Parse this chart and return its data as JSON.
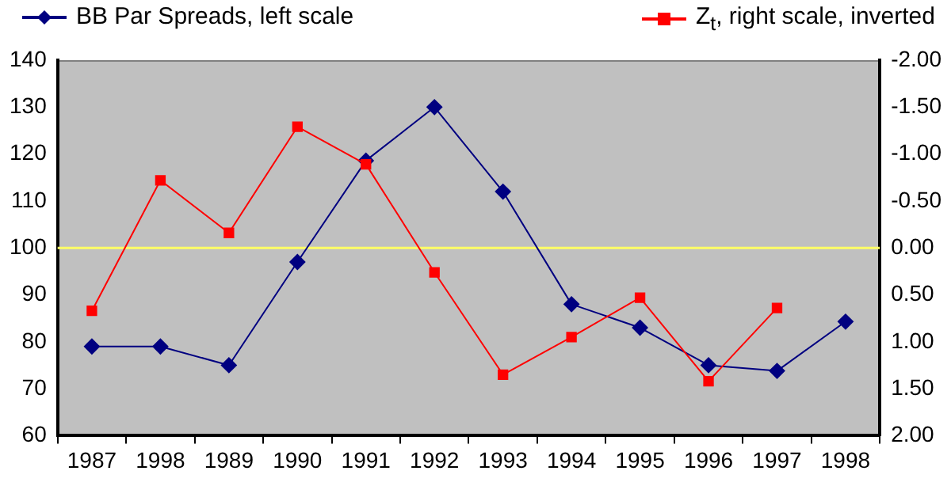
{
  "chart_data": {
    "type": "line",
    "categories": [
      "1987",
      "1998",
      "1989",
      "1990",
      "1991",
      "1992",
      "1993",
      "1994",
      "1995",
      "1996",
      "1997",
      "1998"
    ],
    "series": [
      {
        "name": "BB Par Spreads, left scale",
        "color": "#000080",
        "marker": "diamond",
        "values": [
          79,
          79,
          75,
          97,
          118.6,
          130,
          112,
          88,
          83,
          75,
          73.8,
          84.3
        ]
      },
      {
        "name": "Z$_{t}$, right scale, inverted",
        "color": "#ff0000",
        "marker": "square",
        "axis": "y2",
        "values": [
          0.67,
          -0.72,
          -0.16,
          -1.29,
          -0.89,
          0.26,
          1.35,
          0.95,
          0.53,
          1.42,
          0.64,
          null
        ]
      }
    ],
    "ylim": [
      60,
      140
    ],
    "yticks": [
      60,
      70,
      80,
      90,
      100,
      110,
      120,
      130,
      140
    ],
    "y2lim": [
      2,
      -2
    ],
    "y2ticks": [
      {
        "value": -2,
        "label": "-2.00"
      },
      {
        "value": -1.5,
        "label": "-1.50"
      },
      {
        "value": -1,
        "label": "-1.00"
      },
      {
        "value": -0.5,
        "label": "-0.50"
      },
      {
        "value": 0,
        "label": "0.00"
      },
      {
        "value": 0.5,
        "label": "0.50"
      },
      {
        "value": 1,
        "label": "1.00"
      },
      {
        "value": 1.5,
        "label": "1.50"
      },
      {
        "value": 2,
        "label": "2.00"
      }
    ],
    "ref_lines": [
      {
        "axis": "y2",
        "value": 0,
        "color": "#ffff66"
      }
    ],
    "grid": false,
    "legend": "top",
    "line_style": "solid"
  }
}
